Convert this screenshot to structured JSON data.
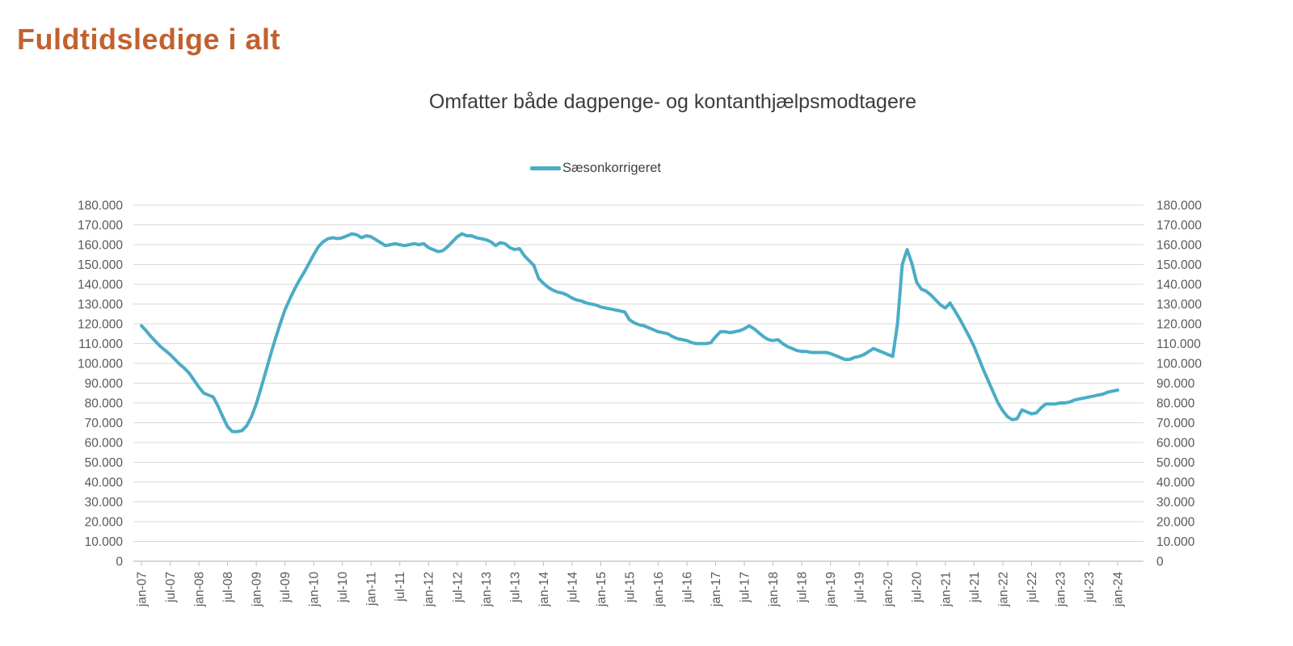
{
  "page": {
    "title": "Fuldtidsledige i alt"
  },
  "chart": {
    "subtitle": "Omfatter både dagpenge- og kontanthjælpsmodtagere",
    "legend": {
      "label": "Sæsonkorrigeret",
      "color": "#4BACC6"
    }
  },
  "colors": {
    "title": "#C2612E",
    "line": "#4BACC6",
    "gridline": "#D9D9D9",
    "axis_line": "#BFBFBF",
    "axis_text": "#595959",
    "subtitle_text": "#3B3B3B"
  },
  "chart_data": {
    "type": "line",
    "title": "Omfatter både dagpenge- og kontanthjælpsmodtagere",
    "xlabel": "",
    "ylabel": "",
    "ylim": [
      0,
      180000
    ],
    "y_tick_step": 10000,
    "grid": "horizontal",
    "legend_position": "top-center",
    "axes_note": "identical y-axis labels on left and right side",
    "x_interval": "monthly",
    "x_start": "jan-07",
    "x_end": "jan-24",
    "x_tick_labels": [
      "jan-07",
      "jul-07",
      "jan-08",
      "jul-08",
      "jan-09",
      "jul-09",
      "jan-10",
      "jul-10",
      "jan-11",
      "jul-11",
      "jan-12",
      "jul-12",
      "jan-13",
      "jul-13",
      "jan-14",
      "jul-14",
      "jan-15",
      "jul-15",
      "jan-16",
      "jul-16",
      "jan-17",
      "jul-17",
      "jan-18",
      "jul-18",
      "jan-19",
      "jul-19",
      "jan-20",
      "jul-20",
      "jan-21",
      "jul-21",
      "jan-22",
      "jul-22",
      "jan-23",
      "jul-23",
      "jan-24"
    ],
    "y_tick_labels": [
      "0",
      "10.000",
      "20.000",
      "30.000",
      "40.000",
      "50.000",
      "60.000",
      "70.000",
      "80.000",
      "90.000",
      "100.000",
      "110.000",
      "120.000",
      "130.000",
      "140.000",
      "150.000",
      "160.000",
      "170.000",
      "180.000"
    ],
    "series": [
      {
        "name": "Sæsonkorrigeret",
        "color": "#4BACC6",
        "values": [
          119000,
          116500,
          113500,
          111000,
          108500,
          106500,
          104500,
          102000,
          99500,
          97500,
          95000,
          91500,
          88000,
          85000,
          84000,
          83000,
          78500,
          73000,
          68000,
          65500,
          65500,
          66000,
          68500,
          73000,
          79500,
          87500,
          96000,
          104500,
          112500,
          120000,
          127000,
          132500,
          137500,
          142000,
          146000,
          150500,
          155000,
          159000,
          161500,
          163000,
          163500,
          163000,
          163500,
          164500,
          165500,
          165000,
          163500,
          164500,
          164000,
          162500,
          161000,
          159500,
          160000,
          160500,
          160000,
          159500,
          160000,
          160500,
          160000,
          160500,
          158500,
          157500,
          156500,
          157000,
          159000,
          161500,
          164000,
          165500,
          164500,
          164500,
          163500,
          163000,
          162500,
          161500,
          159500,
          161000,
          160500,
          158500,
          157500,
          158000,
          154500,
          152000,
          149500,
          143000,
          140500,
          138500,
          137000,
          136000,
          135500,
          134500,
          133000,
          132000,
          131500,
          130500,
          130000,
          129500,
          128500,
          128000,
          127500,
          127000,
          126500,
          126000,
          122000,
          120500,
          119500,
          119000,
          118000,
          117000,
          116000,
          115500,
          115000,
          113500,
          112500,
          112000,
          111500,
          110500,
          110000,
          110000,
          110000,
          110500,
          113500,
          116000,
          116000,
          115500,
          116000,
          116500,
          117500,
          119000,
          117500,
          115500,
          113500,
          112000,
          111500,
          112000,
          110000,
          108500,
          107500,
          106500,
          106000,
          106000,
          105500,
          105500,
          105500,
          105500,
          105000,
          104000,
          103000,
          102000,
          102000,
          103000,
          103500,
          104500,
          106000,
          107500,
          106500,
          105500,
          104500,
          103500,
          120000,
          150000,
          157500,
          150500,
          141000,
          137500,
          136500,
          134500,
          132000,
          129500,
          128000,
          130500,
          126500,
          122500,
          118000,
          113500,
          108500,
          102500,
          96500,
          91000,
          85500,
          80000,
          76000,
          73000,
          71500,
          72000,
          76500,
          75500,
          74500,
          75000,
          77500,
          79500,
          79500,
          79500,
          80000,
          80000,
          80500,
          81500,
          82000,
          82500,
          83000,
          83500,
          84000,
          84500,
          85500,
          86000,
          86500
        ]
      }
    ]
  }
}
